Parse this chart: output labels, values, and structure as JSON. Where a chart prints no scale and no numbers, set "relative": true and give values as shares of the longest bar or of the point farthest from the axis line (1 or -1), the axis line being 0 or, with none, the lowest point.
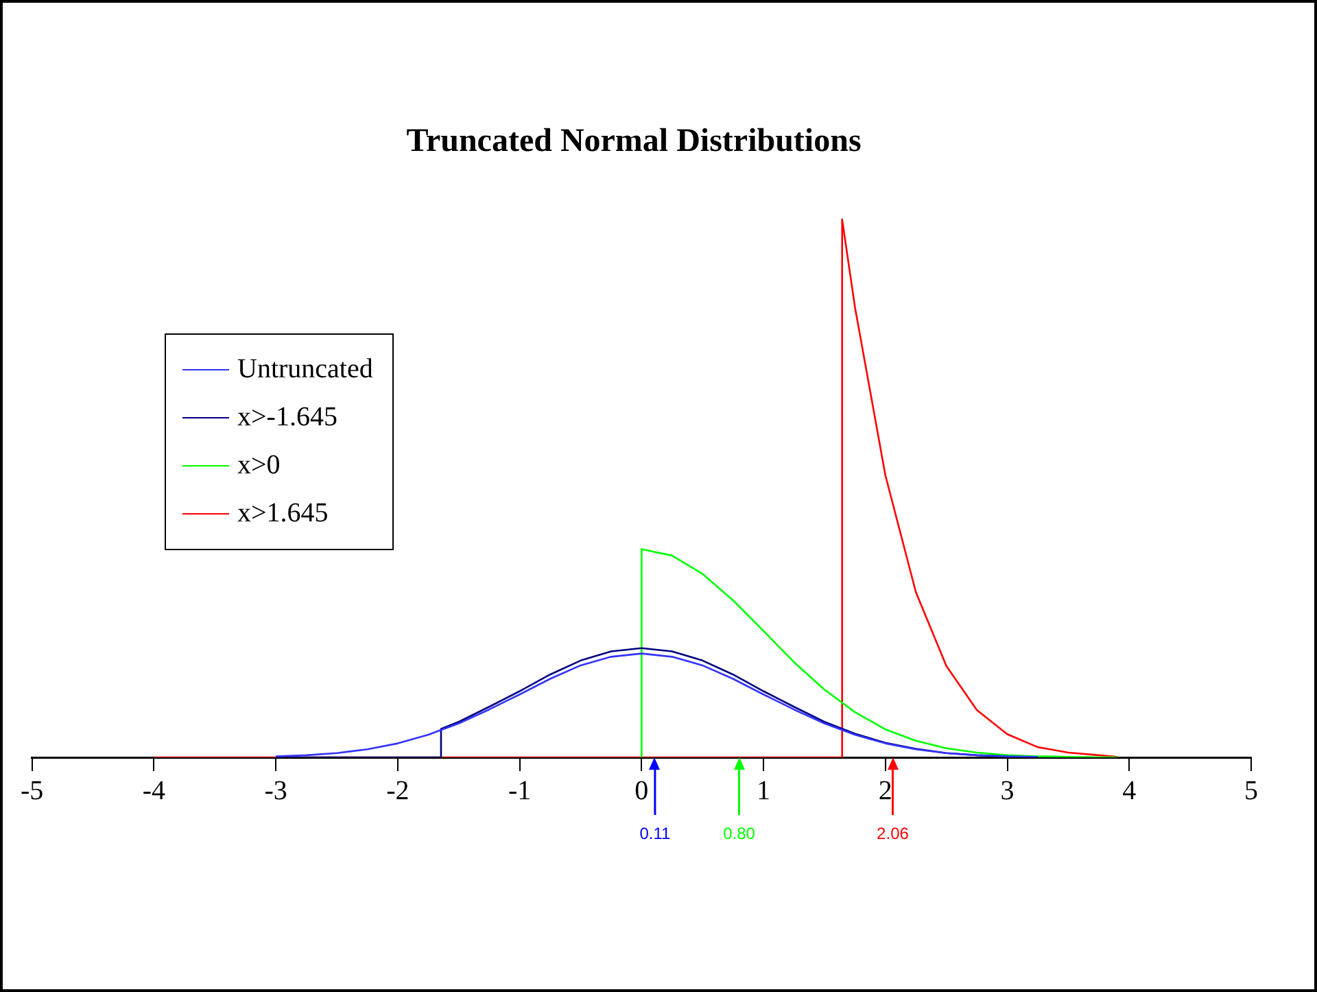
{
  "chart_data": {
    "type": "line",
    "title": "Truncated Normal Distributions",
    "relative": true,
    "legend": "top left",
    "grid": false,
    "marker": "none",
    "line_style": "solid",
    "xlim": [
      -5,
      5
    ],
    "xticks": [
      -5,
      -4,
      -3,
      -2,
      -1,
      0,
      1,
      2,
      3,
      4,
      5
    ],
    "series": [
      {
        "name": "Untruncated",
        "color": "#3333ff",
        "x": [
          -3,
          -2.75,
          -2.5,
          -2.25,
          -2,
          -1.75,
          -1.5,
          -1.25,
          -1,
          -0.75,
          -0.5,
          -0.25,
          0,
          0.25,
          0.5,
          0.75,
          1,
          1.25,
          1.5,
          1.75,
          2,
          2.25,
          2.5,
          2.75,
          3,
          3.25
        ],
        "values": [
          0.002,
          0.004,
          0.008,
          0.015,
          0.026,
          0.042,
          0.063,
          0.089,
          0.117,
          0.146,
          0.171,
          0.187,
          0.193,
          0.187,
          0.171,
          0.146,
          0.117,
          0.089,
          0.063,
          0.042,
          0.026,
          0.015,
          0.008,
          0.004,
          0.002,
          0.001
        ]
      },
      {
        "name": "x>-1.645",
        "color": "#000080",
        "x": [
          -3,
          -1.645,
          -1.645,
          -1.5,
          -1.25,
          -1,
          -0.75,
          -0.5,
          -0.25,
          0,
          0.25,
          0.5,
          0.75,
          1,
          1.25,
          1.5,
          1.75,
          2,
          2.25,
          2.5,
          2.75,
          3
        ],
        "values": [
          0,
          0,
          0.053,
          0.066,
          0.094,
          0.123,
          0.154,
          0.18,
          0.197,
          0.203,
          0.197,
          0.18,
          0.154,
          0.123,
          0.094,
          0.066,
          0.044,
          0.027,
          0.016,
          0.008,
          0.004,
          0.002
        ]
      },
      {
        "name": "x>0",
        "color": "#00ff00",
        "x": [
          0,
          0,
          0.25,
          0.5,
          0.75,
          1,
          1.25,
          1.5,
          1.75,
          2,
          2.25,
          2.5,
          2.75,
          3,
          3.25,
          3.5,
          3.9
        ],
        "values": [
          0,
          0.387,
          0.375,
          0.341,
          0.292,
          0.235,
          0.177,
          0.126,
          0.084,
          0.052,
          0.031,
          0.017,
          0.009,
          0.004,
          0.002,
          0.001,
          0
        ]
      },
      {
        "name": "x>1.645",
        "color": "#ff0000",
        "x": [
          -4,
          1.645,
          1.645,
          1.75,
          2,
          2.25,
          2.5,
          2.75,
          3,
          3.25,
          3.5,
          3.75,
          3.9
        ],
        "values": [
          0,
          0,
          1,
          0.837,
          0.524,
          0.307,
          0.17,
          0.088,
          0.043,
          0.019,
          0.009,
          0.004,
          0.001
        ]
      }
    ],
    "ref_lines": [
      {
        "axis": "x",
        "value": 0.11,
        "label": "0.11",
        "color": "#0000ff"
      },
      {
        "axis": "x",
        "value": 0.8,
        "label": "0.80",
        "color": "#00ff00"
      },
      {
        "axis": "x",
        "value": 2.06,
        "label": "2.06",
        "color": "#ff0000"
      }
    ]
  }
}
